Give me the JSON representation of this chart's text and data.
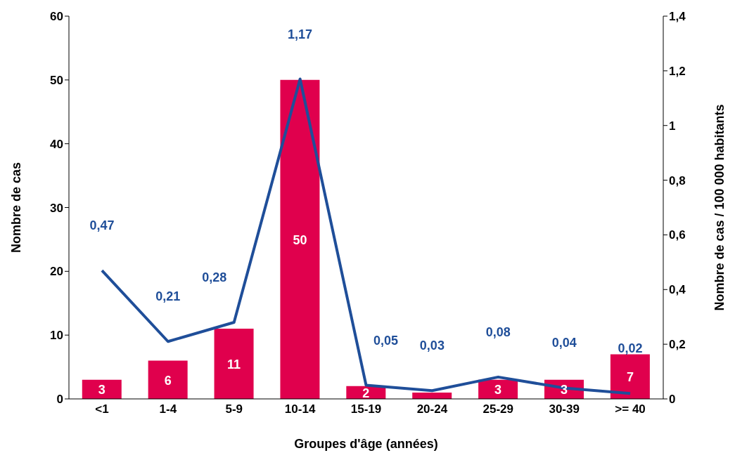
{
  "chart_data": {
    "type": "bar",
    "xlabel": "Groupes d'âge (années)",
    "ylabel": "Nombre de cas",
    "y2label": "Nombre de cas / 100 000 habitants",
    "categories": [
      "<1",
      "1-4",
      "5-9",
      "10-14",
      "15-19",
      "20-24",
      "25-29",
      "30-39",
      ">= 40"
    ],
    "series": [
      {
        "color": "#e0004d",
        "values": [
          3,
          6,
          11,
          50,
          2,
          1,
          3,
          3,
          7
        ],
        "value_labels": [
          "3",
          "6",
          "11",
          "50",
          "2",
          null,
          "3",
          "3",
          "7"
        ]
      },
      {
        "type": "line",
        "axis": "y2",
        "color": "#1f4e99",
        "values": [
          0.47,
          0.21,
          0.28,
          1.17,
          0.05,
          0.03,
          0.08,
          0.04,
          0.02
        ],
        "value_labels": [
          "0,47",
          "0,21",
          "0,28",
          "1,17",
          "0,05",
          "0,03",
          "0,08",
          "0,04",
          "0,02"
        ]
      }
    ],
    "ylim": [
      0,
      60
    ],
    "yticks": [
      0,
      10,
      20,
      30,
      40,
      50,
      60
    ],
    "y2lim": [
      0,
      1.4
    ],
    "y2ticks": [
      0,
      {
        "value": 0.2,
        "label": "0,2"
      },
      {
        "value": 0.4,
        "label": "0,4"
      },
      {
        "value": 0.6,
        "label": "0,6"
      },
      {
        "value": 0.8,
        "label": "0,8"
      },
      1,
      {
        "value": 1.2,
        "label": "1,2"
      },
      {
        "value": 1.4,
        "label": "1,4"
      }
    ],
    "grid": false,
    "legend": false
  }
}
